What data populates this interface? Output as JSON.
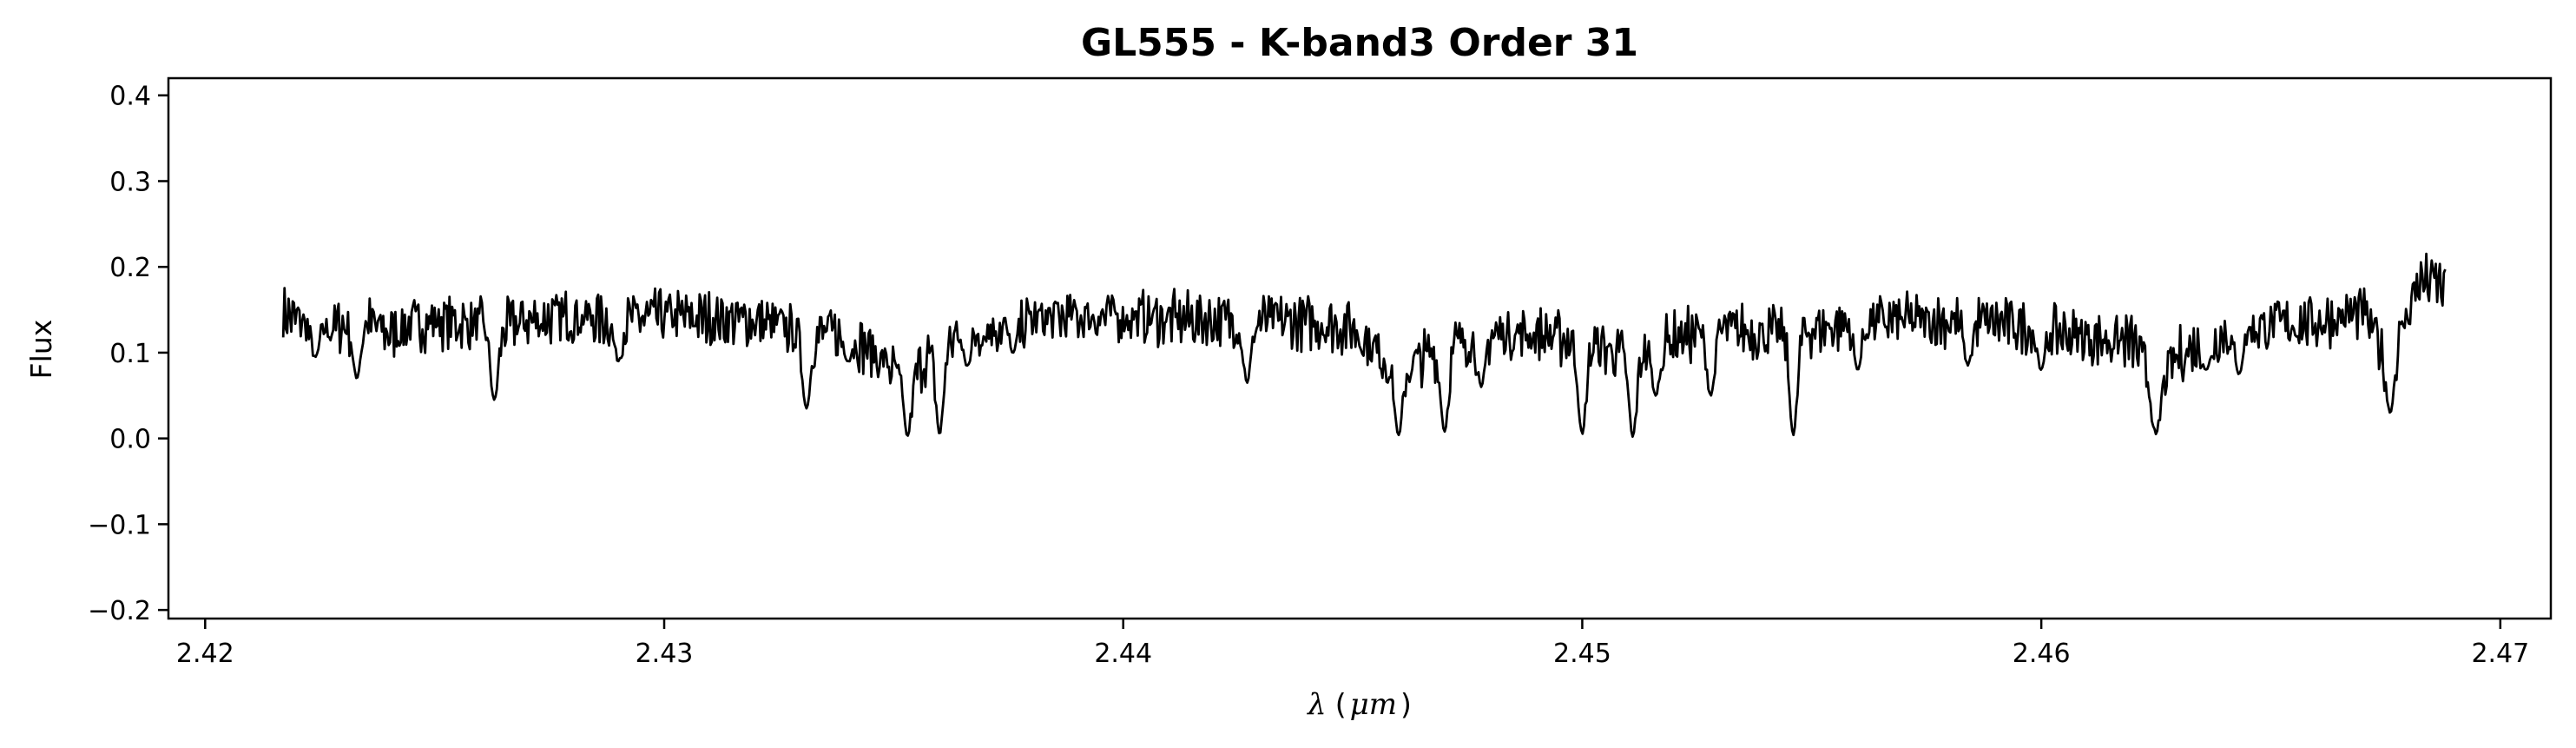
{
  "chart_data": {
    "type": "line",
    "title": "GL555 - K-band3 Order 31",
    "xlabel": "λ (μm)",
    "xlabel_prefix": "λ",
    "xlabel_paren": "(",
    "xlabel_unit": "μm",
    "xlabel_paren_close": ")",
    "ylabel": "Flux",
    "xlim": [
      2.4192,
      2.4711
    ],
    "ylim": [
      -0.21,
      0.42
    ],
    "xticks": [
      "2.42",
      "2.43",
      "2.44",
      "2.45",
      "2.46",
      "2.47"
    ],
    "xtick_values": [
      2.42,
      2.43,
      2.44,
      2.45,
      2.46,
      2.47
    ],
    "yticks": [
      "−0.2",
      "−0.1",
      "0.0",
      "0.1",
      "0.2",
      "0.3",
      "0.4"
    ],
    "ytick_values": [
      -0.2,
      -0.1,
      0.0,
      0.1,
      0.2,
      0.3,
      0.4
    ],
    "grid": false,
    "line_color": "#000000",
    "series": [
      {
        "x_start": 2.4217,
        "x_end": 2.4688,
        "anchors": [
          [
            2.4217,
            0.148
          ],
          [
            2.4225,
            0.13
          ],
          [
            2.4235,
            0.14
          ],
          [
            2.424,
            0.125
          ],
          [
            2.4245,
            0.135
          ],
          [
            2.425,
            0.14
          ],
          [
            2.426,
            0.135
          ],
          [
            2.4263,
            0.13
          ],
          [
            2.427,
            0.14
          ],
          [
            2.428,
            0.145
          ],
          [
            2.429,
            0.14
          ],
          [
            2.43,
            0.145
          ],
          [
            2.431,
            0.142
          ],
          [
            2.432,
            0.14
          ],
          [
            2.4331,
            0.125
          ],
          [
            2.434,
            0.125
          ],
          [
            2.4346,
            0.1
          ],
          [
            2.4353,
            0.07
          ],
          [
            2.436,
            0.115
          ],
          [
            2.437,
            0.13
          ],
          [
            2.438,
            0.14
          ],
          [
            2.439,
            0.145
          ],
          [
            2.44,
            0.145
          ],
          [
            2.441,
            0.142
          ],
          [
            2.442,
            0.14
          ],
          [
            2.443,
            0.14
          ],
          [
            2.444,
            0.138
          ],
          [
            2.445,
            0.132
          ],
          [
            2.446,
            0.08
          ],
          [
            2.447,
            0.11
          ],
          [
            2.448,
            0.125
          ],
          [
            2.449,
            0.125
          ],
          [
            2.45,
            0.115
          ],
          [
            2.451,
            0.1
          ],
          [
            2.452,
            0.12
          ],
          [
            2.453,
            0.13
          ],
          [
            2.454,
            0.125
          ],
          [
            2.455,
            0.13
          ],
          [
            2.456,
            0.138
          ],
          [
            2.457,
            0.14
          ],
          [
            2.458,
            0.14
          ],
          [
            2.459,
            0.138
          ],
          [
            2.46,
            0.13
          ],
          [
            2.461,
            0.12
          ],
          [
            2.462,
            0.115
          ],
          [
            2.4625,
            0.06
          ],
          [
            2.463,
            0.1
          ],
          [
            2.464,
            0.125
          ],
          [
            2.465,
            0.135
          ],
          [
            2.466,
            0.138
          ],
          [
            2.467,
            0.15
          ],
          [
            2.4675,
            0.1
          ],
          [
            2.4678,
            0.12
          ],
          [
            2.4682,
            0.185
          ],
          [
            2.4686,
            0.185
          ],
          [
            2.4688,
            0.175
          ]
        ],
        "dips": [
          [
            2.4224,
            0.095
          ],
          [
            2.4233,
            0.07
          ],
          [
            2.4263,
            0.045
          ],
          [
            2.429,
            0.09
          ],
          [
            2.4331,
            0.035
          ],
          [
            2.434,
            0.09
          ],
          [
            2.4353,
            0.003
          ],
          [
            2.436,
            0.005
          ],
          [
            2.4366,
            0.085
          ],
          [
            2.4376,
            0.1
          ],
          [
            2.4427,
            0.065
          ],
          [
            2.446,
            0.004
          ],
          [
            2.447,
            0.008
          ],
          [
            2.4478,
            0.06
          ],
          [
            2.45,
            0.005
          ],
          [
            2.4511,
            0.002
          ],
          [
            2.4516,
            0.05
          ],
          [
            2.4528,
            0.05
          ],
          [
            2.4546,
            0.004
          ],
          [
            2.456,
            0.08
          ],
          [
            2.4584,
            0.085
          ],
          [
            2.4625,
            0.005
          ],
          [
            2.46,
            0.08
          ],
          [
            2.4636,
            0.08
          ],
          [
            2.4643,
            0.075
          ],
          [
            2.4676,
            0.03
          ]
        ]
      }
    ]
  }
}
